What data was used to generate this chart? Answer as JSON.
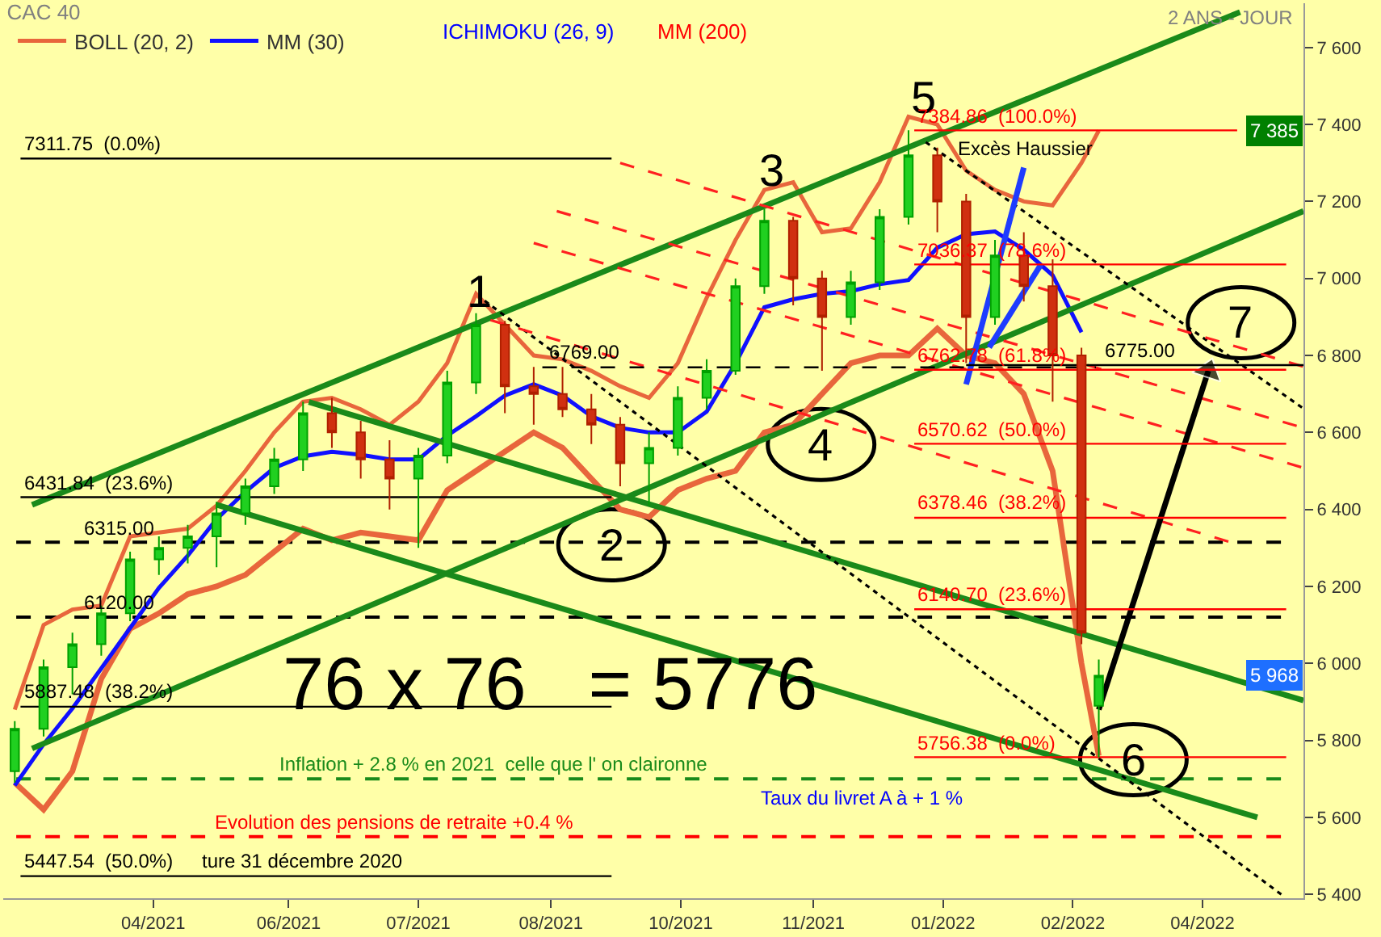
{
  "chart_data": {
    "type": "candlestick",
    "title": "CAC 40",
    "x": [
      "2021-02-26",
      "2021-03-08",
      "2021-03-18",
      "2021-03-28",
      "2021-04-07",
      "2021-04-17",
      "2021-04-27",
      "2021-05-07",
      "2021-05-17",
      "2021-05-27",
      "2021-06-06",
      "2021-06-16",
      "2021-06-26",
      "2021-07-06",
      "2021-07-16",
      "2021-07-26",
      "2021-08-05",
      "2021-08-15",
      "2021-08-25",
      "2021-09-04",
      "2021-09-14",
      "2021-09-24",
      "2021-10-04",
      "2021-10-14",
      "2021-10-24",
      "2021-11-03",
      "2021-11-13",
      "2021-11-23",
      "2021-12-03",
      "2021-12-13",
      "2021-12-23",
      "2022-01-02",
      "2022-01-12",
      "2022-01-22",
      "2022-02-01",
      "2022-02-11",
      "2022-02-21",
      "2022-03-03",
      "2022-03-09"
    ],
    "ohlc": [
      [
        5720,
        5850,
        5690,
        5830
      ],
      [
        5830,
        6010,
        5810,
        5990
      ],
      [
        5990,
        6080,
        5920,
        6050
      ],
      [
        6050,
        6150,
        6020,
        6130
      ],
      [
        6130,
        6290,
        6110,
        6270
      ],
      [
        6270,
        6330,
        6230,
        6300
      ],
      [
        6300,
        6360,
        6260,
        6330
      ],
      [
        6330,
        6420,
        6250,
        6390
      ],
      [
        6390,
        6480,
        6360,
        6460
      ],
      [
        6460,
        6560,
        6440,
        6530
      ],
      [
        6530,
        6680,
        6500,
        6650
      ],
      [
        6650,
        6690,
        6560,
        6600
      ],
      [
        6600,
        6630,
        6480,
        6530
      ],
      [
        6530,
        6580,
        6400,
        6480
      ],
      [
        6480,
        6560,
        6300,
        6540
      ],
      [
        6540,
        6760,
        6520,
        6730
      ],
      [
        6730,
        6910,
        6700,
        6880
      ],
      [
        6880,
        6890,
        6650,
        6720
      ],
      [
        6720,
        6770,
        6620,
        6700
      ],
      [
        6700,
        6770,
        6640,
        6660
      ],
      [
        6660,
        6700,
        6570,
        6620
      ],
      [
        6620,
        6640,
        6460,
        6520
      ],
      [
        6520,
        6600,
        6410,
        6560
      ],
      [
        6560,
        6720,
        6540,
        6690
      ],
      [
        6690,
        6790,
        6660,
        6760
      ],
      [
        6760,
        7000,
        6750,
        6980
      ],
      [
        6980,
        7180,
        6960,
        7150
      ],
      [
        7150,
        7160,
        6930,
        7000
      ],
      [
        7000,
        7020,
        6760,
        6900
      ],
      [
        6900,
        7020,
        6880,
        6990
      ],
      [
        6990,
        7180,
        6970,
        7160
      ],
      [
        7160,
        7384.86,
        7140,
        7320
      ],
      [
        7320,
        7340,
        7120,
        7200
      ],
      [
        7200,
        7220,
        6780,
        6900
      ],
      [
        6900,
        7100,
        6880,
        7060
      ],
      [
        7060,
        7120,
        6940,
        6980
      ],
      [
        6980,
        7050,
        6680,
        6800
      ],
      [
        6800,
        6820,
        6050,
        6080
      ],
      [
        5890,
        6010,
        5756.38,
        5968
      ]
    ],
    "series": [
      {
        "name": "BOLL (20, 2)",
        "type": "line",
        "color": "#e8663c",
        "line_style": "solid",
        "values": [
          5880,
          6100,
          6140,
          6150,
          6330,
          6340,
          6350,
          6410,
          6500,
          6600,
          6680,
          6690,
          6660,
          6620,
          6680,
          6780,
          6960,
          6880,
          6800,
          6790,
          6760,
          6720,
          6690,
          6780,
          6950,
          7100,
          7230,
          7250,
          7120,
          7130,
          7250,
          7420,
          7400,
          7280,
          7230,
          7200,
          7190,
          7300,
          7384
        ]
      },
      {
        "type": "line",
        "color": "#e8663c",
        "line_style": "solid",
        "values": [
          5690,
          5620,
          5720,
          5960,
          6090,
          6130,
          6180,
          6200,
          6230,
          6290,
          6350,
          6320,
          6340,
          6330,
          6320,
          6450,
          6500,
          6550,
          6600,
          6560,
          6480,
          6400,
          6380,
          6450,
          6480,
          6500,
          6600,
          6620,
          6700,
          6780,
          6800,
          6800,
          6870,
          6800,
          6780,
          6700,
          6500,
          6000,
          5760
        ]
      },
      {
        "name": "MM (30)",
        "type": "line",
        "color": "#1010ff",
        "line_style": "solid",
        "values": [
          5683,
          5790,
          5883,
          5987,
          6092,
          6196,
          6280,
          6375,
          6446,
          6508,
          6538,
          6550,
          6542,
          6530,
          6530,
          6592,
          6642,
          6696,
          6725,
          6696,
          6642,
          6612,
          6600,
          6600,
          6654,
          6779,
          6925,
          6946,
          6960,
          6967,
          6985,
          6996,
          7080,
          7115,
          7122,
          7075,
          7008,
          6860,
          null
        ]
      },
      {
        "type": "line",
        "color": "#1a8a1a",
        "line_style": "solid",
        "x": [
          "2021-03-04",
          "2022-04-27"
        ],
        "values": [
          6412,
          7692
        ]
      },
      {
        "type": "line",
        "color": "#1a8a1a",
        "line_style": "solid",
        "x": [
          "2021-03-04",
          "2022-05-19"
        ],
        "values": [
          5779,
          7175
        ]
      },
      {
        "type": "line",
        "color": "#1a8a1a",
        "line_style": "solid",
        "x": [
          "2021-06-08",
          "2022-05-19"
        ],
        "values": [
          6679,
          5904
        ]
      },
      {
        "type": "line",
        "color": "#1a8a1a",
        "line_style": "solid",
        "x": [
          "2021-05-07",
          "2022-05-03"
        ],
        "values": [
          6412,
          5600
        ]
      },
      {
        "type": "line",
        "color": "#000000",
        "line_style": "dotted",
        "x": [
          "2021-08-08",
          "2022-05-12"
        ],
        "values": [
          6942,
          5396
        ]
      },
      {
        "type": "line",
        "color": "#000000",
        "line_style": "dotted",
        "x": [
          "2022-01-08",
          "2022-05-19"
        ],
        "values": [
          7354,
          6662
        ]
      },
      {
        "type": "line",
        "color": "#ff2020",
        "line_style": "dashed",
        "x": [
          "2021-09-24",
          "2022-05-19"
        ],
        "values": [
          7300,
          6771
        ]
      },
      {
        "type": "line",
        "color": "#ff2020",
        "line_style": "dashed",
        "x": [
          "2021-09-02",
          "2022-05-19"
        ],
        "values": [
          7175,
          6612
        ]
      },
      {
        "type": "line",
        "color": "#ff2020",
        "line_style": "dashed",
        "x": [
          "2021-08-25",
          "2022-05-19"
        ],
        "values": [
          7092,
          6508
        ]
      },
      {
        "type": "line",
        "color": "#ff2020",
        "line_style": "dashed",
        "x": [
          "2021-08-10",
          "2022-04-25"
        ],
        "values": [
          6892,
          6312
        ]
      },
      {
        "type": "line",
        "color": "#1e3cff",
        "line_style": "solid",
        "x": [
          "2022-01-22",
          "2022-02-11"
        ],
        "values": [
          6725,
          7288
        ]
      },
      {
        "type": "line",
        "color": "#1e3cff",
        "line_style": "solid",
        "x": [
          "2022-01-30",
          "2022-02-17"
        ],
        "values": [
          6821,
          7037
        ]
      },
      {
        "type": "line",
        "color": "#000000",
        "line_style": "solid",
        "marker": "triangle",
        "x": [
          "2022-03-09",
          "2022-04-16"
        ],
        "values": [
          5880,
          6760
        ]
      },
      {
        "type": "line",
        "color": "#000000",
        "line_style": "solid",
        "x": [
          "2021-02-28",
          "2021-09-21"
        ],
        "values": [
          7311.75,
          7311.75
        ]
      },
      {
        "type": "line",
        "color": "#000000",
        "line_style": "solid",
        "x": [
          "2021-02-28",
          "2021-09-21"
        ],
        "values": [
          6431.84,
          6431.84
        ]
      },
      {
        "type": "line",
        "color": "#000000",
        "line_style": "solid",
        "x": [
          "2021-02-28",
          "2021-09-21"
        ],
        "values": [
          5887.48,
          5887.48
        ]
      },
      {
        "type": "line",
        "color": "#000000",
        "line_style": "solid",
        "x": [
          "2021-02-28",
          "2021-09-21"
        ],
        "values": [
          5447.54,
          5447.54
        ]
      },
      {
        "type": "line",
        "color": "#ff0000",
        "line_style": "solid",
        "x": [
          "2022-01-04",
          "2022-04-26"
        ],
        "values": [
          7384.86,
          7384.86
        ]
      },
      {
        "type": "line",
        "color": "#ff0000",
        "line_style": "solid",
        "x": [
          "2022-01-04",
          "2022-05-13"
        ],
        "values": [
          7036.37,
          7036.37
        ]
      },
      {
        "type": "line",
        "color": "#ff0000",
        "line_style": "solid",
        "x": [
          "2022-01-04",
          "2022-05-13"
        ],
        "values": [
          6762.78,
          6762.78
        ]
      },
      {
        "type": "line",
        "color": "#ff0000",
        "line_style": "solid",
        "x": [
          "2022-01-04",
          "2022-05-13"
        ],
        "values": [
          6570.62,
          6570.62
        ]
      },
      {
        "type": "line",
        "color": "#ff0000",
        "line_style": "solid",
        "x": [
          "2022-01-04",
          "2022-05-13"
        ],
        "values": [
          6378.46,
          6378.46
        ]
      },
      {
        "type": "line",
        "color": "#ff0000",
        "line_style": "solid",
        "x": [
          "2022-01-04",
          "2022-05-13"
        ],
        "values": [
          6140.7,
          6140.7
        ]
      },
      {
        "type": "line",
        "color": "#ff0000",
        "line_style": "solid",
        "x": [
          "2022-01-04",
          "2022-05-13"
        ],
        "values": [
          5756.38,
          5756.38
        ]
      },
      {
        "type": "line",
        "color": "#000000",
        "line_style": "solid",
        "x": [
          "2022-01-22",
          "2022-05-19"
        ],
        "values": [
          6775,
          6775
        ]
      },
      {
        "type": "line",
        "color": "#000000",
        "line_style": "dashed",
        "x": [
          "2021-08-28",
          "2022-03-08"
        ],
        "values": [
          6769,
          6769
        ]
      }
    ],
    "ref_lines": [
      {
        "axis": "y",
        "value": 6315,
        "label": "6315.00",
        "color": "#000000",
        "line_style": "dashed"
      },
      {
        "axis": "y",
        "value": 6120,
        "label": "6120.00",
        "color": "#000000",
        "line_style": "dashed"
      },
      {
        "axis": "y",
        "value": 5700,
        "label": "Inflation + 2.8 % en 2021  celle que l' on claironne",
        "color": "#1a8a1a",
        "line_style": "dashed"
      },
      {
        "axis": "y",
        "value": 5550,
        "label": "Evolution des pensions de retraite +0.4 %",
        "color": "#ff0000",
        "line_style": "dashed"
      }
    ],
    "annotations": [
      {
        "text": "1",
        "x": "2021-08-06",
        "y": 6967
      },
      {
        "text": "2",
        "x": "2021-09-21",
        "y": 6308
      },
      "3",
      "4",
      "5",
      {
        "text": "6",
        "x": "2022-03-21",
        "y": 5750
      },
      "7",
      {
        "text": "Excès Haussier",
        "x": "2022-01-18",
        "y": 7300
      },
      {
        "text": "6769.00",
        "x": "2021-08-29",
        "y": 6769
      },
      {
        "text": "6775.00",
        "x": "2022-03-10",
        "y": 6775
      },
      {
        "text": "7384.86  (100.0%)",
        "x": "2022-01-04",
        "y": 7384.86
      },
      {
        "text": "7036.37  (78.6%)",
        "x": "2022-01-04",
        "y": 7036.37
      },
      {
        "text": "6762.78  (61.8%)",
        "x": "2022-01-04",
        "y": 6762.78
      },
      {
        "text": "6570.62  (50.0%)",
        "x": "2022-01-04",
        "y": 6570.62
      },
      {
        "text": "6378.46  (38.2%)",
        "x": "2022-01-04",
        "y": 6378.46
      },
      {
        "text": "6140.70  (23.6%)",
        "x": "2022-01-04",
        "y": 6140.7
      },
      {
        "text": "5756.38  (0.0%)",
        "x": "2022-01-04",
        "y": 5756.38
      },
      {
        "text": "7311.75  (0.0%)",
        "x": "2021-02-28",
        "y": 7311.75
      },
      {
        "text": "6431.84  (23.6%)",
        "x": "2021-02-28",
        "y": 6431.84
      },
      {
        "text": "5887.48  (38.2%)",
        "x": "2021-02-28",
        "y": 5887.48
      },
      {
        "text": "5447.54  (50.0%)",
        "x": "2021-02-28",
        "y": 5447.54
      },
      {
        "text": "7 385",
        "y": 7385
      },
      {
        "text": "5 968",
        "y": 5968
      },
      "2 ANS - JOUR",
      "ICHIMOKU (26, 9)",
      "MM (200)",
      "76 x 76   = 5776",
      "Taux du livret A à + 1 %",
      "ture 31 décembre 2020"
    ],
    "xlim": [
      "2021-02-22",
      "2022-05-19"
    ],
    "xticks": [
      {
        "value": "2021-04-15",
        "label": "04/2021"
      },
      {
        "value": "2021-06-01",
        "label": "06/2021"
      },
      {
        "value": "2021-07-16",
        "label": "07/2021"
      },
      {
        "value": "2021-08-31",
        "label": "08/2021"
      },
      {
        "value": "2021-10-15",
        "label": "10/2021"
      },
      {
        "value": "2021-11-30",
        "label": "11/2021"
      },
      {
        "value": "2022-01-14",
        "label": "01/2022"
      },
      {
        "value": "2022-02-28",
        "label": "02/2022"
      },
      {
        "value": "2022-04-14",
        "label": "04/2022"
      }
    ],
    "ylim": [
      5390,
      7715
    ],
    "yticks": [
      {
        "value": 5400,
        "label": "5 400"
      },
      {
        "value": 5600,
        "label": "5 600"
      },
      {
        "value": 5800,
        "label": "5 800"
      },
      {
        "value": 6000,
        "label": "6 000"
      },
      {
        "value": 6200,
        "label": "6 200"
      },
      {
        "value": 6400,
        "label": "6 400"
      },
      {
        "value": 6600,
        "label": "6 600"
      },
      {
        "value": 6800,
        "label": "6 800"
      },
      {
        "value": 7000,
        "label": "7 000"
      },
      {
        "value": 7200,
        "label": "7 200"
      },
      {
        "value": 7400,
        "label": "7 400"
      },
      {
        "value": 7600,
        "label": "7 600"
      }
    ],
    "grid": false,
    "legend": "top left"
  }
}
